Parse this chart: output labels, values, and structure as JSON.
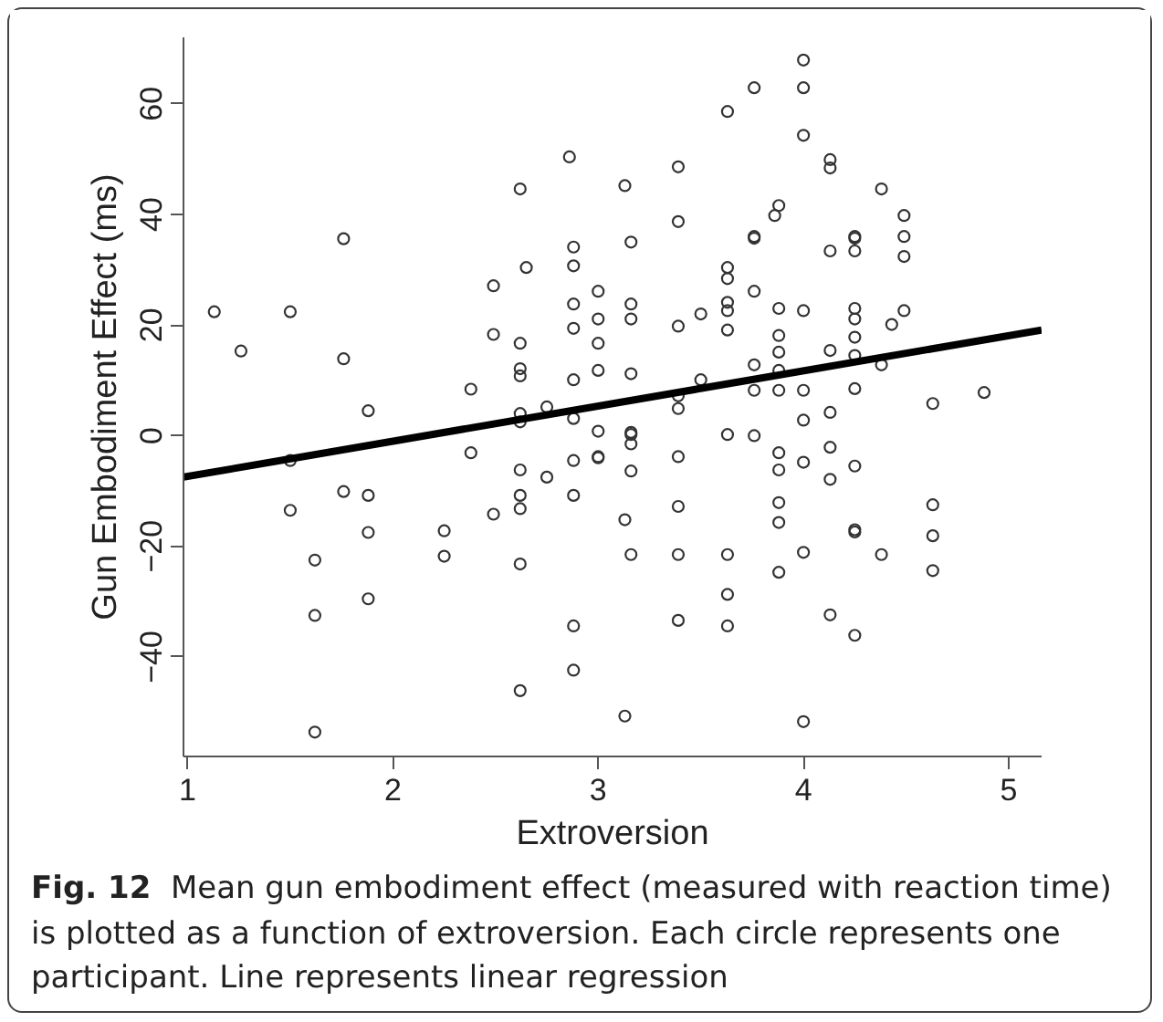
{
  "chart_data": {
    "type": "scatter",
    "xlabel": "Extroversion",
    "ylabel": "Gun Embodiment Effect (ms)",
    "annotations": [
      "Fig. 12  Mean gun embodiment effect (measured with reaction time) is plotted as a function of extroversion. Each circle represents one participant. Line represents linear regression"
    ],
    "xlim": [
      0.98,
      5.16
    ],
    "ylim": [
      -58,
      72
    ],
    "xticks": [
      1,
      2,
      3,
      4,
      5
    ],
    "yticks": [
      -40,
      -20,
      0,
      20,
      40,
      60
    ],
    "grid": false,
    "series": [
      {
        "marker": "circle",
        "color": "#333333",
        "x": [
          1.13,
          1.26,
          1.5,
          1.76,
          1.76,
          1.88,
          2.38,
          2.49,
          2.49,
          2.62,
          2.62,
          2.62,
          2.62,
          2.62,
          2.62,
          2.65,
          2.75,
          2.86,
          2.88,
          2.88,
          2.88,
          2.88,
          2.88,
          2.88,
          3.0,
          3.0,
          3.0,
          3.0,
          3.0,
          3.13,
          4.0,
          3.76,
          4.0,
          3.63,
          4.0,
          4.13,
          4.13,
          3.39,
          4.38,
          3.88,
          3.86,
          4.49,
          3.39,
          3.76,
          3.76,
          4.25,
          4.25,
          4.49,
          3.16,
          4.13,
          4.25,
          4.49,
          3.63,
          3.63,
          3.76,
          3.16,
          3.16,
          3.63,
          3.63,
          3.5,
          3.39,
          3.63,
          3.88,
          4.0,
          4.25,
          4.25,
          4.49,
          4.43,
          3.88,
          4.25,
          3.88,
          4.13,
          4.25,
          4.38,
          3.16,
          3.5,
          3.76,
          3.88,
          3.39,
          3.39,
          3.76,
          3.88,
          4.0,
          4.25,
          4.63,
          4.88,
          4.0,
          4.13,
          3.16,
          3.63,
          3.76,
          1.5,
          1.5,
          1.62,
          1.62,
          1.62,
          1.76,
          1.88,
          1.88,
          1.88,
          2.25,
          2.25,
          2.38,
          2.49,
          2.62,
          2.62,
          2.62,
          2.62,
          2.62,
          2.75,
          2.88,
          2.88,
          2.88,
          2.88,
          3.0,
          3.0,
          3.13,
          3.13,
          3.16,
          3.16,
          3.39,
          3.16,
          3.88,
          3.88,
          4.0,
          4.13,
          4.13,
          4.25,
          3.39,
          3.88,
          3.88,
          4.25,
          4.25,
          4.63,
          4.63,
          4.63,
          3.16,
          3.39,
          3.63,
          4.0,
          4.38,
          3.88,
          3.63,
          3.39,
          3.63,
          4.13,
          4.25,
          4.0
        ],
        "values": [
          22.4,
          15.3,
          22.4,
          35.6,
          13.9,
          4.5,
          8.4,
          27.1,
          18.3,
          44.6,
          16.7,
          12.1,
          10.8,
          4.0,
          2.5,
          30.4,
          5.2,
          50.4,
          34.1,
          30.7,
          23.8,
          19.4,
          10.1,
          3.1,
          26.1,
          21.1,
          16.7,
          11.8,
          0.8,
          45.2,
          67.9,
          62.9,
          62.9,
          58.6,
          54.3,
          49.9,
          48.4,
          48.6,
          44.6,
          41.6,
          39.8,
          39.8,
          38.7,
          36.0,
          35.7,
          36.0,
          35.7,
          36.0,
          35.0,
          33.4,
          33.4,
          32.4,
          30.4,
          28.4,
          26.1,
          23.8,
          21.1,
          24.1,
          22.6,
          22.0,
          19.8,
          19.1,
          23.0,
          22.6,
          23.0,
          21.1,
          22.6,
          20.1,
          18.1,
          17.8,
          15.1,
          15.4,
          14.5,
          12.8,
          11.2,
          10.1,
          12.8,
          11.8,
          7.2,
          4.9,
          8.2,
          8.2,
          8.2,
          8.5,
          5.8,
          7.8,
          2.8,
          4.2,
          0.2,
          0.2,
          0.0,
          -13.5,
          -4.5,
          -22.5,
          -32.5,
          -53.6,
          -10.1,
          -10.8,
          -17.5,
          -29.5,
          -17.2,
          -21.8,
          -3.1,
          -14.2,
          -6.2,
          -10.8,
          -13.2,
          -23.2,
          -46.1,
          -7.5,
          -4.5,
          -10.8,
          -34.4,
          -42.4,
          -3.8,
          -4.0,
          -15.2,
          -50.7,
          0.6,
          -1.5,
          -3.8,
          -6.4,
          -3.1,
          -6.2,
          -4.8,
          -2.1,
          -7.9,
          -5.5,
          -12.8,
          -12.1,
          -15.7,
          -17.0,
          -17.4,
          -12.5,
          -18.1,
          -24.4,
          -21.5,
          -21.5,
          -21.5,
          -21.1,
          -21.5,
          -24.7,
          -28.7,
          -33.4,
          -34.4,
          -32.4,
          -36.1,
          -51.7
        ]
      },
      {
        "type": "line",
        "color": "#000000",
        "line_style": "solid",
        "x": [
          0.98,
          5.16
        ],
        "values": [
          -7.5,
          19.1
        ]
      }
    ]
  }
}
